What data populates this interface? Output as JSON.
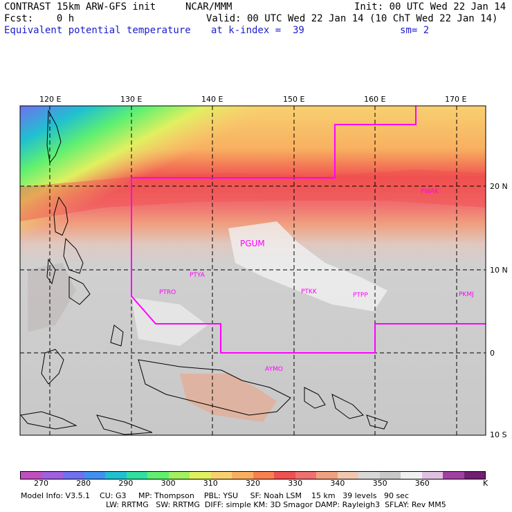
{
  "header": {
    "model": "CONTRAST 15km ARW-GFS init",
    "org": "NCAR/MMM",
    "init": "Init: 00 UTC Wed 22 Jan 14",
    "fcst": "Fcst:    0 h",
    "valid": "Valid: 00 UTC Wed 22 Jan 14 (10 ChT Wed 22 Jan 14)",
    "field": "Equivalent potential temperature",
    "level": "at k-index =  39",
    "smooth": "sm= 2"
  },
  "map": {
    "lon_labels": [
      "120 E",
      "130 E",
      "140 E",
      "150 E",
      "160 E",
      "170 E"
    ],
    "lat_labels": [
      "20 N",
      "10 N",
      "0",
      "10 S"
    ],
    "stations": [
      "PGUM",
      "PWAK",
      "PTYA",
      "PTRO",
      "PTKK",
      "PTPP",
      "PKMJ",
      "AYMO"
    ]
  },
  "colorbar": {
    "colors": [
      "#c050c0",
      "#a060e0",
      "#7070f0",
      "#4090f0",
      "#20c0d0",
      "#30e0a0",
      "#60f070",
      "#a0f060",
      "#e0f060",
      "#f8d070",
      "#f8b060",
      "#f88050",
      "#f05050",
      "#f07070",
      "#f0a080",
      "#f0c8b0",
      "#d8d8d8",
      "#c8c8c8",
      "#f0f0f0",
      "#e0c0e0",
      "#a040a0",
      "#702070"
    ],
    "ticks": [
      "270",
      "280",
      "290",
      "300",
      "310",
      "320",
      "330",
      "340",
      "350",
      "360"
    ],
    "unit": "K"
  },
  "footer": {
    "line1": "Model Info: V3.5.1    CU: G3     MP: Thompson    PBL: YSU     SF: Noah LSM    15 km   39 levels   90 sec",
    "line2": "LW: RRTMG   SW: RRTMG  DIFF: simple KM: 3D Smagor DAMP: Rayleigh3  SFLAY: Rev MM5"
  }
}
